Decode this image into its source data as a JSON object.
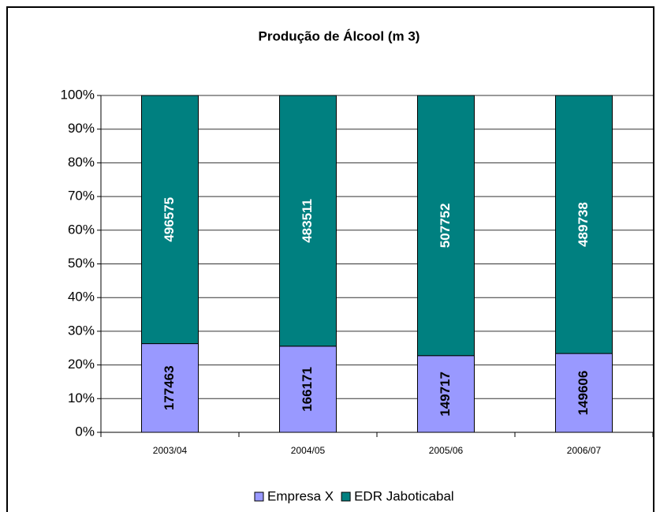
{
  "chart_data": {
    "type": "bar",
    "stacking": "percent",
    "title": "Produção de Álcool (m 3)",
    "categories": [
      "2003/04",
      "2004/05",
      "2005/06",
      "2006/07"
    ],
    "series": [
      {
        "name": "Empresa X",
        "color": "#9999ff",
        "label_color": "#000000",
        "values": [
          177463,
          166171,
          149717,
          149606
        ]
      },
      {
        "name": "EDR Jaboticabal",
        "color": "#008080",
        "label_color": "#ffffff",
        "values": [
          496575,
          483511,
          507752,
          489738
        ]
      }
    ],
    "ylim": [
      0,
      100
    ],
    "yticks": [
      {
        "value": 0,
        "label": "0%"
      },
      {
        "value": 10,
        "label": "10%"
      },
      {
        "value": 20,
        "label": "20%"
      },
      {
        "value": 30,
        "label": "30%"
      },
      {
        "value": 40,
        "label": "40%"
      },
      {
        "value": 50,
        "label": "50%"
      },
      {
        "value": 60,
        "label": "60%"
      },
      {
        "value": 70,
        "label": "70%"
      },
      {
        "value": 80,
        "label": "80%"
      },
      {
        "value": 90,
        "label": "90%"
      },
      {
        "value": 100,
        "label": "100%"
      }
    ],
    "grid": true,
    "legend": "bottom"
  }
}
